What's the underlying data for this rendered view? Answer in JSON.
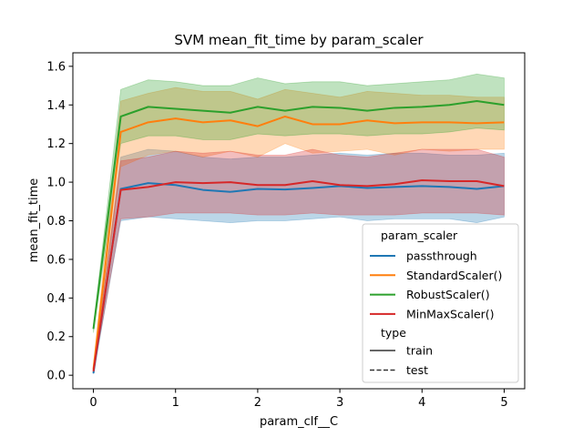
{
  "chart_data": {
    "type": "line",
    "title": "SVM mean_fit_time by param_scaler",
    "xlabel": "param_clf__C",
    "ylabel": "mean_fit_time",
    "xlim": [
      -0.25,
      5.25
    ],
    "ylim": [
      -0.07,
      1.67
    ],
    "xticks": [
      0,
      1,
      2,
      3,
      4,
      5
    ],
    "yticks": [
      0.0,
      0.2,
      0.4,
      0.6,
      0.8,
      1.0,
      1.2,
      1.4,
      1.6
    ],
    "ytick_labels": [
      "0.0",
      "0.2",
      "0.4",
      "0.6",
      "0.8",
      "1.0",
      "1.2",
      "1.4",
      "1.6"
    ],
    "grid": false,
    "legend": {
      "placement": "lower-right",
      "hue_title": "param_scaler",
      "style_title": "type",
      "style_entries": [
        {
          "label": "train",
          "dash": "solid"
        },
        {
          "label": "test",
          "dash": "dashed"
        }
      ]
    },
    "x": [
      0,
      0.333,
      0.667,
      1.0,
      1.333,
      1.667,
      2.0,
      2.333,
      2.667,
      3.0,
      3.333,
      3.667,
      4.0,
      4.333,
      4.667,
      5.0
    ],
    "series": [
      {
        "name": "passthrough",
        "color": "#1f77b4",
        "values": [
          0.01,
          0.965,
          0.995,
          0.985,
          0.96,
          0.95,
          0.965,
          0.962,
          0.97,
          0.98,
          0.97,
          0.975,
          0.98,
          0.975,
          0.965,
          0.98
        ],
        "lower": [
          0.005,
          0.8,
          0.82,
          0.81,
          0.8,
          0.79,
          0.8,
          0.8,
          0.81,
          0.82,
          0.8,
          0.81,
          0.81,
          0.81,
          0.79,
          0.82
        ],
        "upper": [
          0.015,
          1.13,
          1.17,
          1.16,
          1.13,
          1.12,
          1.13,
          1.13,
          1.14,
          1.15,
          1.14,
          1.15,
          1.15,
          1.14,
          1.14,
          1.15
        ]
      },
      {
        "name": "StandardScaler()",
        "color": "#ff7f0e",
        "values": [
          0.03,
          1.26,
          1.31,
          1.33,
          1.31,
          1.32,
          1.29,
          1.34,
          1.3,
          1.3,
          1.32,
          1.305,
          1.31,
          1.31,
          1.305,
          1.31
        ],
        "lower": [
          0.01,
          1.08,
          1.14,
          1.16,
          1.13,
          1.16,
          1.13,
          1.2,
          1.15,
          1.16,
          1.17,
          1.14,
          1.17,
          1.16,
          1.17,
          1.17
        ],
        "upper": [
          0.05,
          1.42,
          1.46,
          1.49,
          1.47,
          1.47,
          1.43,
          1.48,
          1.46,
          1.44,
          1.47,
          1.46,
          1.45,
          1.45,
          1.44,
          1.44
        ]
      },
      {
        "name": "RobustScaler()",
        "color": "#2ca02c",
        "values": [
          0.24,
          1.34,
          1.39,
          1.38,
          1.37,
          1.36,
          1.39,
          1.37,
          1.39,
          1.385,
          1.37,
          1.385,
          1.39,
          1.4,
          1.42,
          1.4
        ],
        "lower": [
          0.22,
          1.2,
          1.24,
          1.24,
          1.22,
          1.22,
          1.25,
          1.24,
          1.25,
          1.25,
          1.24,
          1.25,
          1.25,
          1.26,
          1.28,
          1.27
        ],
        "upper": [
          0.26,
          1.48,
          1.53,
          1.52,
          1.5,
          1.5,
          1.54,
          1.51,
          1.52,
          1.52,
          1.5,
          1.51,
          1.52,
          1.53,
          1.56,
          1.54
        ]
      },
      {
        "name": "MinMaxScaler()",
        "color": "#d62728",
        "values": [
          0.02,
          0.96,
          0.975,
          1.0,
          0.995,
          1.0,
          0.985,
          0.985,
          1.005,
          0.985,
          0.98,
          0.99,
          1.01,
          1.005,
          1.005,
          0.98
        ],
        "lower": [
          0.01,
          0.81,
          0.82,
          0.84,
          0.84,
          0.84,
          0.83,
          0.83,
          0.84,
          0.83,
          0.83,
          0.83,
          0.84,
          0.84,
          0.84,
          0.83
        ],
        "upper": [
          0.03,
          1.11,
          1.13,
          1.16,
          1.15,
          1.16,
          1.14,
          1.14,
          1.17,
          1.14,
          1.13,
          1.15,
          1.17,
          1.17,
          1.17,
          1.13
        ]
      }
    ]
  }
}
